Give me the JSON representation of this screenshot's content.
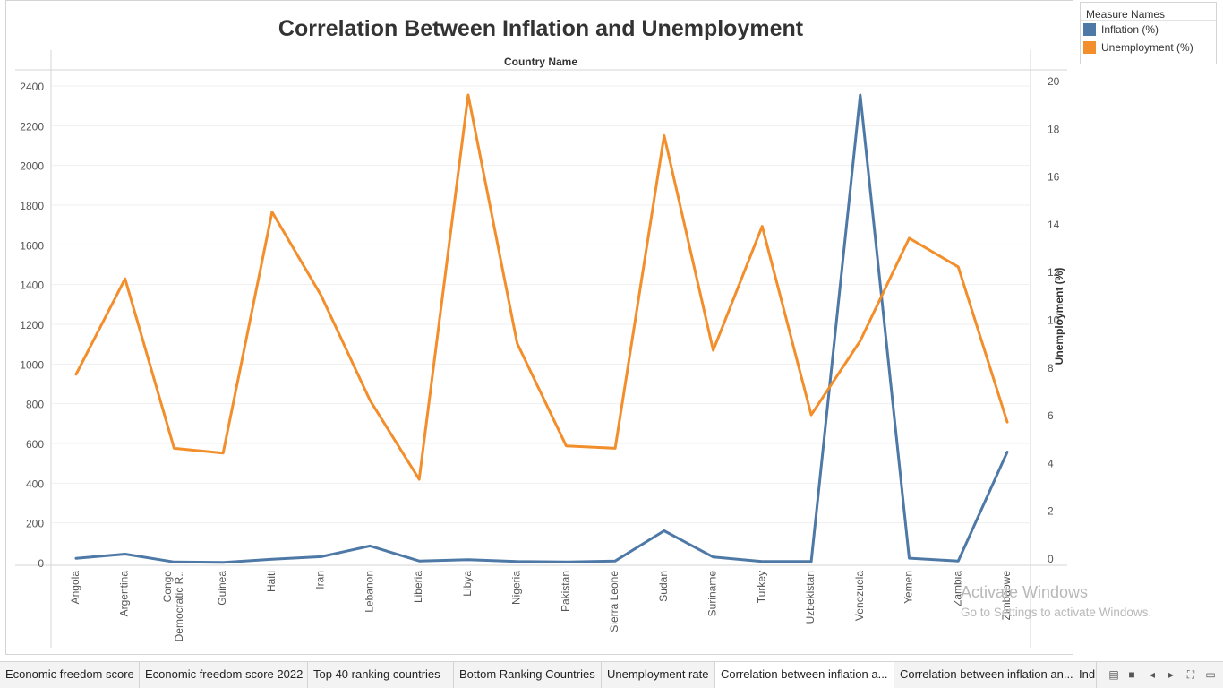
{
  "chart_data": {
    "type": "line",
    "title": "Correlation Between Inflation and Unemployment",
    "column_header": "Country Name",
    "categories": [
      "Angola",
      "Argentina",
      "Congo\nDemocratic R..",
      "Guinea",
      "Haiti",
      "Iran",
      "Lebanon",
      "Liberia",
      "Libya",
      "Nigeria",
      "Pakistan",
      "Sierra Leone",
      "Sudan",
      "Suriname",
      "Turkey",
      "Uzbekistan",
      "Venezuela",
      "Yemen",
      "Zambia",
      "Zimbabwe"
    ],
    "series": [
      {
        "name": "Inflation (%)",
        "axis": "left",
        "color": "#4e79a7",
        "values": [
          21,
          43,
          3,
          1,
          17,
          30,
          84,
          8,
          15,
          6,
          3,
          8,
          160,
          28,
          6,
          6,
          2355,
          22,
          8,
          557
        ]
      },
      {
        "name": "Unemployment (%)",
        "axis": "right",
        "color": "#f28e2b",
        "values": [
          7.7,
          11.7,
          4.6,
          4.4,
          14.5,
          11.0,
          6.6,
          3.3,
          19.4,
          9.0,
          4.7,
          4.6,
          17.7,
          8.7,
          13.9,
          6.0,
          9.1,
          13.4,
          12.2,
          5.7
        ]
      }
    ],
    "y_left": {
      "ticks": [
        0,
        200,
        400,
        600,
        800,
        1000,
        1200,
        1400,
        1600,
        1800,
        2000,
        2200,
        2400
      ],
      "range": [
        0,
        2400
      ]
    },
    "y_right": {
      "label": "Unemployment (%)",
      "ticks": [
        0,
        2,
        4,
        6,
        8,
        10,
        12,
        14,
        16,
        18,
        20
      ],
      "range": [
        0,
        20
      ]
    },
    "legend": {
      "position": "right",
      "title": "Measure Names"
    }
  },
  "legend": {
    "title": "Measure Names",
    "items": [
      {
        "label": "Inflation (%)",
        "color": "#4e79a7"
      },
      {
        "label": "Unemployment (%)",
        "color": "#f28e2b"
      }
    ]
  },
  "watermark": {
    "title": "Activate Windows",
    "subtitle": "Go to Settings to activate Windows."
  },
  "tabs": [
    {
      "label": "Economic freedom score",
      "active": false
    },
    {
      "label": "Economic freedom score 2022",
      "active": false
    },
    {
      "label": "Top 40 ranking countries",
      "active": false
    },
    {
      "label": "Bottom Ranking Countries",
      "active": false
    },
    {
      "label": "Unemployment rate",
      "active": false
    },
    {
      "label": "Correlation between inflation a...",
      "active": true
    },
    {
      "label": "Correlation between inflation an...",
      "active": false
    },
    {
      "label": "Ind",
      "active": false
    }
  ]
}
